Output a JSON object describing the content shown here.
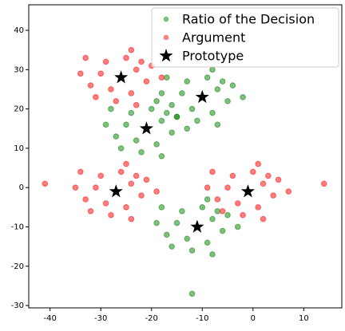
{
  "chart_data": {
    "type": "scatter",
    "xlim": [
      -44.2,
      17.5
    ],
    "ylim": [
      -30.6,
      46.5
    ],
    "xticks": [
      -40,
      -30,
      -20,
      -10,
      0,
      10
    ],
    "yticks": [
      -30,
      -20,
      -10,
      0,
      10,
      20,
      30,
      40
    ],
    "legend": "upper right",
    "series": [
      {
        "name": "Ratio of the Decision",
        "color": "green",
        "marker": "circle",
        "x": [
          -10,
          -7,
          -14,
          -8,
          -12,
          -5,
          -16,
          -9,
          -13,
          -6,
          -15,
          -4,
          -11,
          -2,
          -18,
          -8,
          -17,
          -7,
          -21,
          -18,
          -25,
          -19,
          -23,
          -16,
          -27,
          -20,
          -24,
          -17,
          -26,
          -15,
          -22,
          -13,
          -29,
          -19,
          -28,
          -18,
          -11,
          -8,
          -15,
          -9,
          -13,
          -6,
          -17,
          -10,
          -14,
          -7,
          -16,
          -5,
          -12,
          -3,
          -19,
          -9,
          -18,
          -8,
          -12
        ],
        "y": [
          23,
          25,
          24,
          19,
          20,
          22,
          21,
          28,
          27,
          27,
          18,
          26,
          17,
          23,
          24,
          30,
          28,
          16,
          15,
          17,
          16,
          11,
          12,
          14,
          13,
          20,
          19,
          19,
          10,
          18,
          9,
          15,
          16,
          22,
          20,
          8,
          -10,
          -8,
          -9,
          -14,
          -13,
          -11,
          -12,
          -5,
          -6,
          -6,
          -15,
          -7,
          -16,
          -10,
          -9,
          -3,
          -5,
          -17,
          -27
        ]
      },
      {
        "name": "Argument",
        "color": "red",
        "marker": "circle",
        "x": [
          -26,
          -23,
          -30,
          -24,
          -28,
          -21,
          -32,
          -25,
          -29,
          -22,
          -31,
          -20,
          -27,
          -18,
          -34,
          -24,
          -33,
          -23,
          -27,
          -24,
          -31,
          -25,
          -29,
          -22,
          -33,
          -26,
          -30,
          -23,
          -32,
          -21,
          -28,
          -19,
          -35,
          -25,
          -34,
          -24,
          -1,
          2,
          -5,
          1,
          -3,
          4,
          -7,
          0,
          -4,
          3,
          -6,
          5,
          -2,
          7,
          -9,
          1,
          -8,
          2,
          -41,
          14
        ],
        "y": [
          28,
          30,
          29,
          24,
          25,
          27,
          26,
          33,
          32,
          32,
          23,
          31,
          22,
          28,
          29,
          35,
          33,
          21,
          -1,
          1,
          0,
          -5,
          -4,
          -2,
          -3,
          4,
          3,
          3,
          -6,
          2,
          -7,
          -1,
          0,
          6,
          4,
          -8,
          -1,
          1,
          0,
          -5,
          -4,
          -2,
          -3,
          4,
          3,
          3,
          -6,
          2,
          -7,
          -1,
          0,
          6,
          4,
          -8,
          1,
          1
        ]
      },
      {
        "name": "Prototype",
        "color": "black",
        "marker": "star",
        "x": [
          -26,
          -10,
          -21,
          -27,
          -1,
          -11
        ],
        "y": [
          28,
          23,
          15,
          -1,
          -1,
          -10
        ]
      }
    ]
  }
}
